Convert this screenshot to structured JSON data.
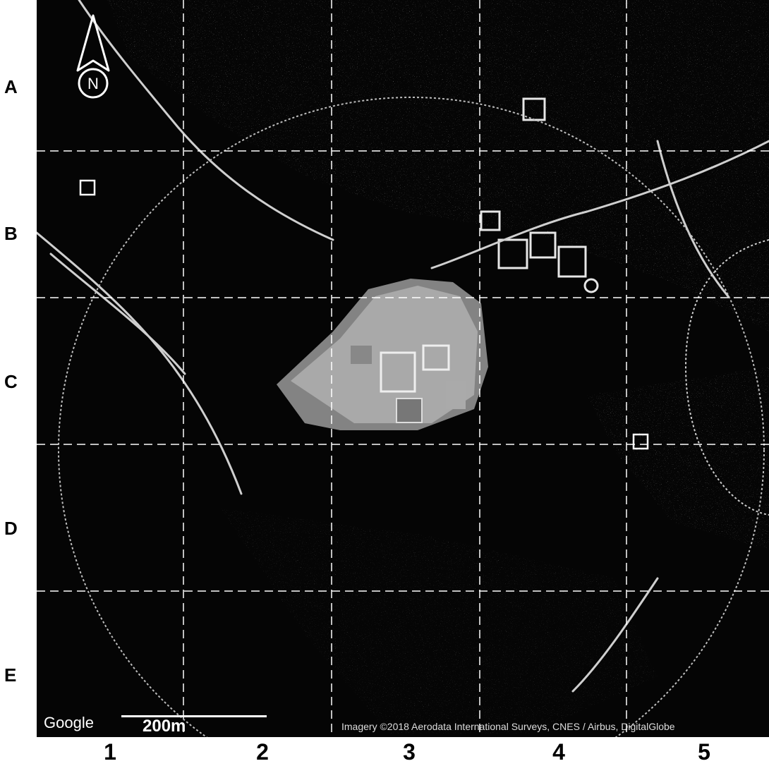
{
  "map": {
    "provider_logo": "Google",
    "scale_label": "200m",
    "attribution": "Imagery ©2018 Aerodata International Surveys, CNES / Airbus, DigitalGlobe",
    "north_label": "N",
    "row_labels": [
      "A",
      "B",
      "C",
      "D",
      "E"
    ],
    "column_labels": [
      "1",
      "2",
      "3",
      "4",
      "5"
    ],
    "icons": {
      "north_arrow": "north-arrow-icon",
      "marker": "square-marker-icon"
    },
    "colors": {
      "background": "#050505",
      "grid": "#ffffff",
      "labels": "#000000"
    }
  }
}
